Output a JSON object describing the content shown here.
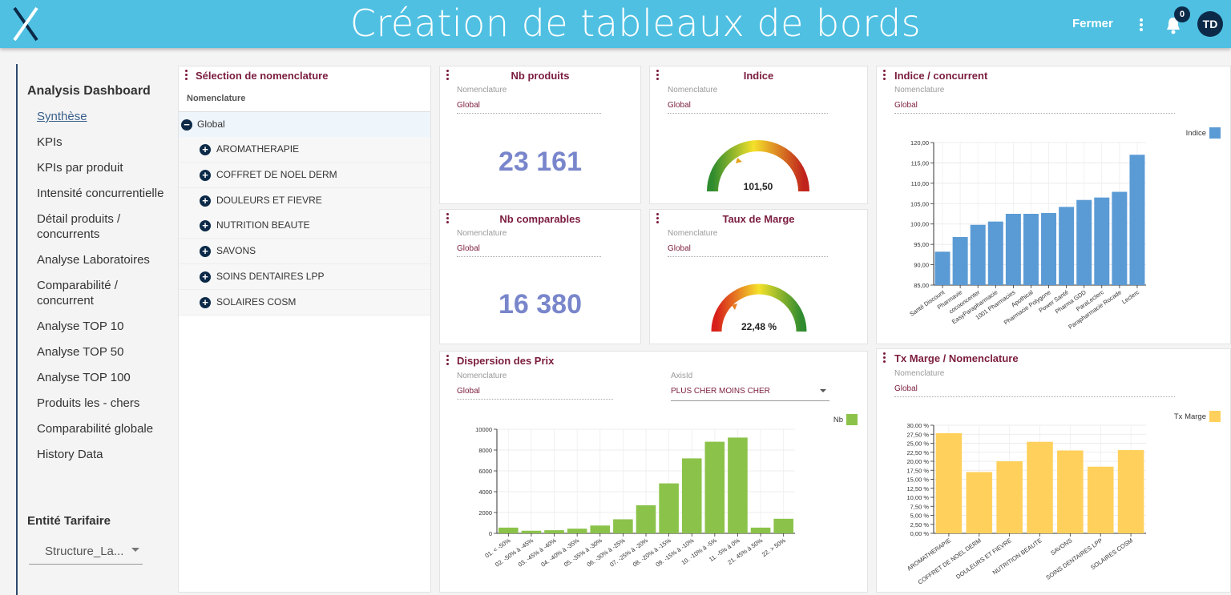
{
  "header": {
    "title": "Création de tableaux de bords",
    "close": "Fermer",
    "notifications": "0",
    "avatar": "TD"
  },
  "sidebar": {
    "title": "Analysis Dashboard",
    "items": [
      "Synthèse",
      "KPIs",
      "KPIs par produit",
      "Intensité concurrentielle",
      "Détail produits / concurrents",
      "Analyse Laboratoires",
      "Comparabilité / concurrent",
      "Analyse TOP 10",
      "Analyse TOP 50",
      "Analyse TOP 100",
      "Produits les - chers",
      "Comparabilité globale",
      "History Data"
    ],
    "entity_label": "Entité Tarifaire",
    "entity_value": "Structure_La..."
  },
  "nomenclature": {
    "title": "Sélection de nomenclature",
    "column": "Nomenclature",
    "root": "Global",
    "children": [
      "AROMATHERAPIE",
      "COFFRET DE NOEL DERM",
      "DOULEURS ET FIEVRE",
      "NUTRITION BEAUTE",
      "SAVONS",
      "SOINS DENTAIRES LPP",
      "SOLAIRES COSM"
    ]
  },
  "nb_produits": {
    "title": "Nb produits",
    "field_label": "Nomenclature",
    "field_value": "Global",
    "value": "23 161"
  },
  "indice": {
    "title": "Indice",
    "field_label": "Nomenclature",
    "field_value": "Global",
    "value": "101,50"
  },
  "nb_comparables": {
    "title": "Nb comparables",
    "field_label": "Nomenclature",
    "field_value": "Global",
    "value": "16 380"
  },
  "taux_marge": {
    "title": "Taux de Marge",
    "field_label": "Nomenclature",
    "field_value": "Global",
    "value": "22,48 %"
  },
  "indice_concurrent": {
    "title": "Indice / concurrent",
    "field_label": "Nomenclature",
    "field_value": "Global",
    "chart": {
      "type": "bar",
      "categories": [
        "Santé Discount",
        "Pharmavie",
        "cocooncenter",
        "EasyParapharmacie",
        "1001 Pharmacies",
        "Apothical",
        "Pharmacie Polygone",
        "Power Santé",
        "Pharma GDD",
        "ParaLeclerc",
        "Parapharmacie Rocade",
        "Leclerc"
      ],
      "series": [
        {
          "name": "Indice",
          "color": "#5b9bd5",
          "values": [
            93.2,
            96.8,
            99.8,
            100.6,
            102.5,
            102.5,
            102.7,
            104.2,
            105.9,
            106.5,
            107.9,
            117.0
          ]
        }
      ],
      "ylim": [
        85,
        120
      ],
      "yticks": [
        {
          "value": 85,
          "label": "85,00"
        },
        {
          "value": 90,
          "label": "90,00"
        },
        {
          "value": 95,
          "label": "95,00"
        },
        {
          "value": 100,
          "label": "100,00"
        },
        {
          "value": 105,
          "label": "105,00"
        },
        {
          "value": 110,
          "label": "110,00"
        },
        {
          "value": 115,
          "label": "115,00"
        },
        {
          "value": 120,
          "label": "120,00"
        }
      ],
      "grid": true
    }
  },
  "dispersion": {
    "title": "Dispersion des Prix",
    "field_label": "Nomenclature",
    "field_value": "Global",
    "axis_label": "AxisId",
    "axis_value": "PLUS CHER MOINS CHER",
    "chart": {
      "type": "bar",
      "categories": [
        "01. < -50%",
        "02. -50% à -45%",
        "03. -45% à -40%",
        "04. -40% à -35%",
        "05. -35% à -30%",
        "06. -30% à -25%",
        "07. -25% à -20%",
        "08. -20% à -15%",
        "09. -15% à -10%",
        "10. -10% à -5%",
        "11. -5% à 0%",
        "21. 45% à 50%",
        "22. > 50%"
      ],
      "series": [
        {
          "name": "Nb",
          "color": "#8bc34a",
          "values": [
            550,
            250,
            300,
            450,
            750,
            1350,
            2700,
            4800,
            7200,
            8800,
            9200,
            550,
            1400
          ]
        }
      ],
      "ylim": [
        0,
        10000
      ],
      "yticks": [
        0,
        2000,
        4000,
        6000,
        8000,
        10000
      ],
      "grid": true
    }
  },
  "tx_marge": {
    "title": "Tx Marge / Nomenclature",
    "field_label": "Nomenclature",
    "field_value": "Global",
    "chart": {
      "type": "bar",
      "categories": [
        "AROMATHERAPIE",
        "COFFRET DE NOEL DERM",
        "DOULEURS ET FIEVRE",
        "NUTRITION BEAUTE",
        "SAVONS",
        "SOINS DENTAIRES LPP",
        "SOLAIRES COSM"
      ],
      "series": [
        {
          "name": "Tx Marge",
          "color": "#ffd15c",
          "values": [
            27.8,
            17.0,
            20.0,
            25.4,
            23.0,
            18.5,
            23.1
          ]
        }
      ],
      "ylim": [
        0,
        30
      ],
      "yticks": [
        {
          "value": 0,
          "label": "0,00 %"
        },
        {
          "value": 2.5,
          "label": "2,50 %"
        },
        {
          "value": 5,
          "label": "5,00 %"
        },
        {
          "value": 7.5,
          "label": "7,50 %"
        },
        {
          "value": 10,
          "label": "10,00 %"
        },
        {
          "value": 12.5,
          "label": "12,50 %"
        },
        {
          "value": 15,
          "label": "15,00 %"
        },
        {
          "value": 17.5,
          "label": "17,50 %"
        },
        {
          "value": 20,
          "label": "20,00 %"
        },
        {
          "value": 22.5,
          "label": "22,50 %"
        },
        {
          "value": 25,
          "label": "25,00 %"
        },
        {
          "value": 27.5,
          "label": "27,50 %"
        },
        {
          "value": 30,
          "label": "30,00 %"
        }
      ],
      "grid": true
    }
  }
}
